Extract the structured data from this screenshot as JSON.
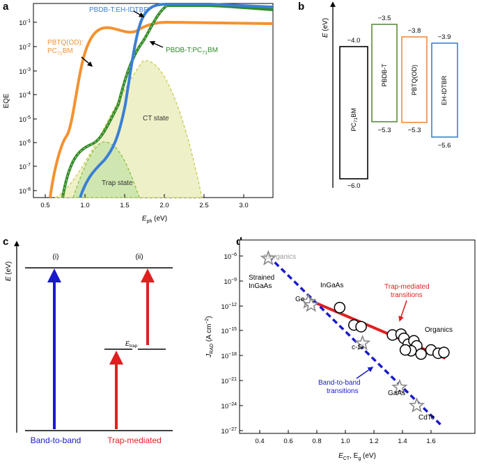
{
  "panels": {
    "a": {
      "label": "a",
      "ylabel": "EQE",
      "xlabel_main": "E",
      "xlabel_sub": "ph",
      "xlabel_unit": " (eV)",
      "xticks": [
        "0.5",
        "1.0",
        "1.5",
        "2.0",
        "2.5",
        "3.0"
      ],
      "yticks": [
        {
          "base": "10",
          "exp": "-1"
        },
        {
          "base": "10",
          "exp": "-2"
        },
        {
          "base": "10",
          "exp": "-3"
        },
        {
          "base": "10",
          "exp": "-4"
        },
        {
          "base": "10",
          "exp": "-5"
        },
        {
          "base": "10",
          "exp": "-6"
        },
        {
          "base": "10",
          "exp": "-7"
        },
        {
          "base": "10",
          "exp": "-8"
        }
      ],
      "label_eh": "PBDB-T:EH-IDTBR",
      "label_pc_main": "PBDB-T:PC",
      "label_pc_sub": "71",
      "label_pc_end": "BM",
      "label_pbtq_1": "PBTQ(OD):",
      "label_pbtq_2_main": "PC",
      "label_pbtq_2_sub": "71",
      "label_pbtq_2_end": "BM",
      "label_ct": "CT state",
      "label_trap": "Trap state",
      "colors": {
        "blue": "#3a7fd5",
        "green": "#2f8a2a",
        "orange": "#f5912f",
        "ct_fill": "#eef0c8",
        "trap_fill": "#cfe6b0"
      }
    },
    "b": {
      "label": "b",
      "axis_main": "E",
      "axis_unit": " (eV)",
      "levels": [
        {
          "name_main": "PC",
          "name_sub": "71",
          "name_end": "BM",
          "top": "−4.0",
          "bottom": "−6.0",
          "color": "#000000"
        },
        {
          "name_main": "PBDB-T",
          "name_sub": "",
          "name_end": "",
          "top": "−3.5",
          "bottom": "−5.3",
          "color": "#5a8a3c"
        },
        {
          "name_main": "PBTQ(OD)",
          "name_sub": "",
          "name_end": "",
          "top": "−3.8",
          "bottom": "−5.3",
          "color": "#f08a3c"
        },
        {
          "name_main": "EH-IDTBR",
          "name_sub": "",
          "name_end": "",
          "top": "−3.9",
          "bottom": "−5.6",
          "color": "#3a7fd5"
        }
      ]
    },
    "c": {
      "label": "c",
      "axis_main": "E",
      "axis_unit": " (eV)",
      "roman_i": "(i)",
      "roman_ii": "(ii)",
      "etrap_main": "E",
      "etrap_sub": "trap",
      "band_label": "Band-to-band",
      "trap_label": "Trap-mediated",
      "colors": {
        "band": "#1a1acc",
        "trap": "#e01f1f"
      }
    },
    "d": {
      "label": "d",
      "ylabel_main": "J",
      "ylabel_sub": "RAD",
      "ylabel_unit": " (A cm",
      "ylabel_exp": "−2",
      "ylabel_close": ")",
      "xlabel_main": "E",
      "xlabel_sub1": "CT",
      "xlabel_mid": ", E",
      "xlabel_sub2": "g",
      "xlabel_unit": " (eV)",
      "xticks": [
        "0.4",
        "0.6",
        "0.8",
        "1.0",
        "1.2",
        "1.4",
        "1.6"
      ],
      "yticks": [
        {
          "base": "10",
          "exp": "−6"
        },
        {
          "base": "10",
          "exp": "−9"
        },
        {
          "base": "10",
          "exp": "−12"
        },
        {
          "base": "10",
          "exp": "−15"
        },
        {
          "base": "10",
          "exp": "−18"
        },
        {
          "base": "10",
          "exp": "−21"
        },
        {
          "base": "10",
          "exp": "−24"
        },
        {
          "base": "10",
          "exp": "−27"
        }
      ],
      "labels": {
        "inorganics": "Inorganics",
        "strained_1": "Strained",
        "strained_2": "InGaAs",
        "ingaas": "InGaAs",
        "ge": "Ge",
        "csi": "c-Si",
        "gaas": "GaAs",
        "cdte": "CdTe",
        "organics": "Organics",
        "trap_1": "Trap-mediated",
        "trap_2": "transitions",
        "band_1": "Band-to-band",
        "band_2": "transitions"
      },
      "stars": [
        {
          "name": "strained-ingaas",
          "e": 0.46,
          "logj": -6.3
        },
        {
          "name": "ge",
          "e": 0.74,
          "logj": -11.5
        },
        {
          "name": "ingaas",
          "e": 0.76,
          "logj": -11.9
        },
        {
          "name": "c-si",
          "e": 1.12,
          "logj": -16.5
        },
        {
          "name": "gaas",
          "e": 1.38,
          "logj": -21.8
        },
        {
          "name": "cdte",
          "e": 1.5,
          "logj": -24.0
        }
      ],
      "organics": [
        {
          "e": 0.96,
          "logj": -12.2
        },
        {
          "e": 1.06,
          "logj": -14.3
        },
        {
          "e": 1.11,
          "logj": -14.5
        },
        {
          "e": 1.33,
          "logj": -15.5
        },
        {
          "e": 1.39,
          "logj": -15.4
        },
        {
          "e": 1.41,
          "logj": -15.9
        },
        {
          "e": 1.44,
          "logj": -16.6
        },
        {
          "e": 1.48,
          "logj": -16.2
        },
        {
          "e": 1.5,
          "logj": -16.8
        },
        {
          "e": 1.46,
          "logj": -17.4
        },
        {
          "e": 1.42,
          "logj": -17.3
        },
        {
          "e": 1.53,
          "logj": -17.8
        },
        {
          "e": 1.6,
          "logj": -17.3
        },
        {
          "e": 1.65,
          "logj": -17.7
        },
        {
          "e": 1.69,
          "logj": -17.6
        }
      ],
      "trap_line": {
        "e": [
          0.76,
          1.7
        ],
        "logj": [
          -11.4,
          -18.3
        ]
      },
      "band_line": {
        "e": [
          0.46,
          1.68
        ],
        "logj": [
          -6.0,
          -26.5
        ]
      },
      "colors": {
        "trap": "#e01f1f",
        "band": "#1a1acc",
        "star": "#888888"
      }
    }
  }
}
